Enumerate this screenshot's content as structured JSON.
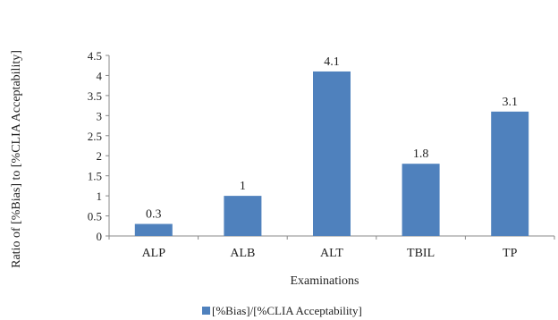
{
  "chart_data": {
    "type": "bar",
    "categories": [
      "ALP",
      "ALB",
      "ALT",
      "TBIL",
      "TP"
    ],
    "series": [
      {
        "name": "[%Bias]/[%CLIA Acceptability]",
        "values": [
          0.3,
          1,
          4.1,
          1.8,
          3.1
        ],
        "color": "#4f81bd"
      }
    ],
    "data_labels": [
      "0.3",
      "1",
      "4.1",
      "1.8",
      "3.1"
    ],
    "xlabel": "Examinations",
    "ylabel": "Ratio of [%Bias] to [%CLIA Acceptability]",
    "ylim": [
      0,
      4.5
    ],
    "yticks": [
      "0",
      "0.5",
      "1",
      "1.5",
      "2",
      "2.5",
      "3",
      "3.5",
      "4",
      "4.5"
    ],
    "grid": false,
    "legend_position": "bottom"
  }
}
